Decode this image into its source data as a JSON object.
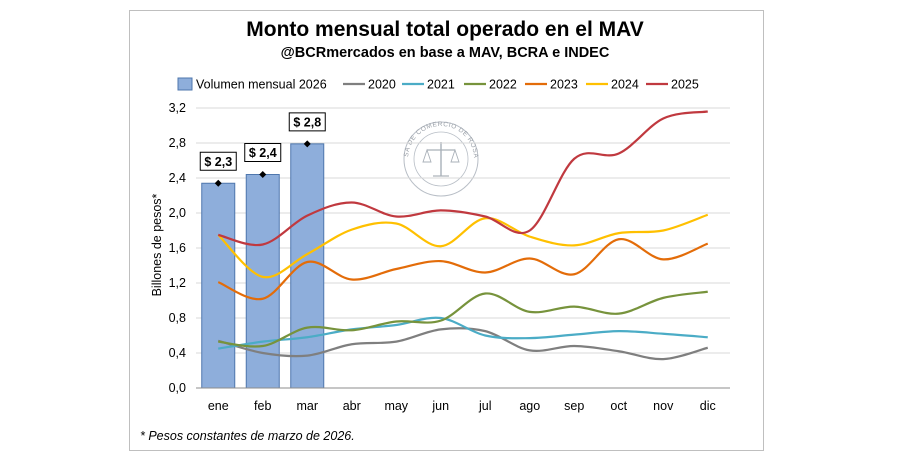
{
  "chart_data": {
    "type": "bar+line",
    "title": "Monto mensual total operado en el MAV",
    "subtitle": "@BCRmercados en base a MAV, BCRA e INDEC",
    "ylabel": "Billones de pesos*",
    "xlabel": "",
    "ylim": [
      0,
      3.2
    ],
    "yticks": [
      0.0,
      0.4,
      0.8,
      1.2,
      1.6,
      2.0,
      2.4,
      2.8,
      3.2
    ],
    "ytick_labels": [
      "0,0",
      "0,4",
      "0,8",
      "1,2",
      "1,6",
      "2,0",
      "2,4",
      "2,8",
      "3,2"
    ],
    "categories": [
      "ene",
      "feb",
      "mar",
      "abr",
      "may",
      "jun",
      "jul",
      "ago",
      "sep",
      "oct",
      "nov",
      "dic"
    ],
    "grid": "horizontal",
    "legend_position": "top",
    "bars": {
      "name": "Volumen mensual 2026",
      "color": "#8eaedb",
      "edge_color": "#4f77ad",
      "values": [
        2.34,
        2.44,
        2.79
      ],
      "labels": [
        "$ 2,3",
        "$ 2,4",
        "$ 2,8"
      ]
    },
    "series": [
      {
        "name": "2020",
        "color": "#7f7f7f",
        "values": [
          0.54,
          0.4,
          0.37,
          0.5,
          0.53,
          0.67,
          0.65,
          0.43,
          0.48,
          0.42,
          0.33,
          0.46
        ]
      },
      {
        "name": "2021",
        "color": "#4bacc6",
        "values": [
          0.45,
          0.53,
          0.58,
          0.67,
          0.72,
          0.8,
          0.6,
          0.57,
          0.61,
          0.65,
          0.62,
          0.58
        ]
      },
      {
        "name": "2022",
        "color": "#77933c",
        "values": [
          0.53,
          0.48,
          0.69,
          0.66,
          0.76,
          0.77,
          1.08,
          0.87,
          0.93,
          0.85,
          1.03,
          1.1
        ]
      },
      {
        "name": "2023",
        "color": "#e36c09",
        "values": [
          1.21,
          1.02,
          1.44,
          1.24,
          1.36,
          1.45,
          1.32,
          1.48,
          1.3,
          1.7,
          1.47,
          1.65
        ]
      },
      {
        "name": "2024",
        "color": "#ffc000",
        "values": [
          1.75,
          1.27,
          1.53,
          1.81,
          1.88,
          1.62,
          1.94,
          1.73,
          1.63,
          1.77,
          1.8,
          1.98
        ]
      },
      {
        "name": "2025",
        "color": "#c0393f",
        "values": [
          1.75,
          1.64,
          1.97,
          2.12,
          1.96,
          2.03,
          1.96,
          1.8,
          2.62,
          2.68,
          3.08,
          3.16
        ]
      }
    ],
    "footnote": "* Pesos constantes de marzo de 2026.",
    "watermark": "BOLSA DE COMERCIO DE ROSARIO"
  }
}
